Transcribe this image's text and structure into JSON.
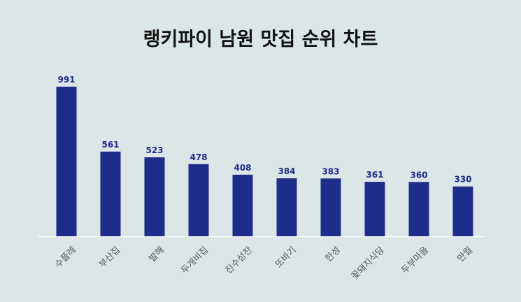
{
  "chart_data": {
    "type": "bar",
    "title": "랭키파이 남원 맛집 순위 차트",
    "xlabel": "",
    "ylabel": "",
    "categories": [
      "수플레",
      "부산집",
      "발해",
      "두개비집",
      "진수성찬",
      "또바기",
      "한성",
      "꽃돼지식당",
      "두부마을",
      "만월"
    ],
    "values": [
      991,
      561,
      523,
      478,
      408,
      384,
      383,
      361,
      360,
      330
    ],
    "ylim": [
      0,
      991
    ],
    "grid": false,
    "legend": "none",
    "data_labels": true
  },
  "colors": {
    "bar": "#1f2d8a",
    "value_label": "#1f2d8a",
    "category_label": "#555555",
    "background": "#dbe6e7",
    "baseline": "#ffffff"
  }
}
